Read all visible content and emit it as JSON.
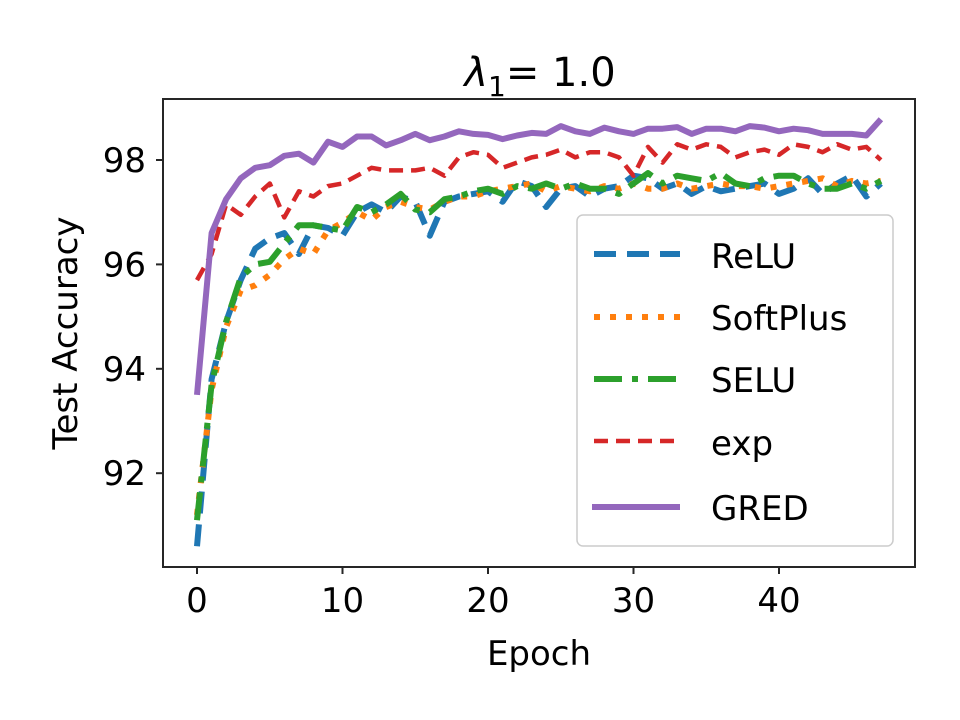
{
  "chart_data": {
    "type": "line",
    "title": "λ1= 1.0",
    "title_main": "λ",
    "title_sub": "1",
    "title_rest": "= 1.0",
    "xlabel": "Epoch",
    "ylabel": "Test Accuracy",
    "xlim": [
      -2.35,
      49.35
    ],
    "ylim": [
      90.2,
      99.17
    ],
    "xticks": [
      0,
      10,
      20,
      30,
      40
    ],
    "xtick_labels": [
      "0",
      "10",
      "20",
      "30",
      "40"
    ],
    "yticks": [
      92,
      94,
      96,
      98
    ],
    "ytick_labels": [
      "92",
      "94",
      "96",
      "98"
    ],
    "grid": false,
    "legend_position": "lower right",
    "x": [
      0,
      1,
      2,
      3,
      4,
      5,
      6,
      7,
      8,
      9,
      10,
      11,
      12,
      13,
      14,
      15,
      16,
      17,
      18,
      19,
      20,
      21,
      22,
      23,
      24,
      25,
      26,
      27,
      28,
      29,
      30,
      31,
      32,
      33,
      34,
      35,
      36,
      37,
      38,
      39,
      40,
      41,
      42,
      43,
      44,
      45,
      46,
      47
    ],
    "series": [
      {
        "name": "ReLU",
        "color": "#1f77b4",
        "dash": "dashed",
        "values": [
          90.6,
          93.8,
          94.9,
          95.7,
          96.3,
          96.5,
          96.6,
          96.2,
          96.75,
          96.7,
          96.55,
          97.0,
          97.15,
          97.0,
          97.3,
          97.2,
          96.55,
          97.2,
          97.3,
          97.35,
          97.4,
          97.2,
          97.6,
          97.5,
          97.1,
          97.45,
          97.5,
          97.3,
          97.45,
          97.5,
          97.7,
          97.65,
          97.45,
          97.55,
          97.35,
          97.5,
          97.4,
          97.45,
          97.5,
          97.55,
          97.35,
          97.45,
          97.65,
          97.35,
          97.55,
          97.7,
          97.3,
          97.55
        ]
      },
      {
        "name": "SoftPlus",
        "color": "#ff7f0e",
        "dash": "dotted",
        "values": [
          91.2,
          93.6,
          94.8,
          95.5,
          95.6,
          95.8,
          96.1,
          96.3,
          96.2,
          96.65,
          96.8,
          97.0,
          96.85,
          97.1,
          97.2,
          97.1,
          97.05,
          97.2,
          97.3,
          97.3,
          97.4,
          97.45,
          97.5,
          97.55,
          97.4,
          97.5,
          97.45,
          97.4,
          97.5,
          97.45,
          97.55,
          97.45,
          97.45,
          97.55,
          97.45,
          97.5,
          97.55,
          97.5,
          97.5,
          97.45,
          97.5,
          97.55,
          97.6,
          97.65,
          97.5,
          97.6,
          97.55,
          97.6
        ]
      },
      {
        "name": "SELU",
        "color": "#2ca02c",
        "dash": "dashdot",
        "values": [
          91.1,
          93.7,
          94.9,
          95.75,
          96.0,
          96.05,
          96.4,
          96.75,
          96.75,
          96.7,
          96.65,
          97.1,
          97.0,
          97.15,
          97.35,
          97.05,
          97.0,
          97.25,
          97.3,
          97.4,
          97.45,
          97.35,
          97.5,
          97.45,
          97.55,
          97.45,
          97.55,
          97.45,
          97.45,
          97.35,
          97.55,
          97.75,
          97.55,
          97.7,
          97.65,
          97.6,
          97.75,
          97.55,
          97.5,
          97.65,
          97.7,
          97.7,
          97.55,
          97.45,
          97.45,
          97.55,
          97.45,
          97.6
        ]
      },
      {
        "name": "exp",
        "color": "#d62728",
        "dash": "dashed-short",
        "values": [
          95.7,
          96.2,
          97.15,
          96.95,
          97.3,
          97.55,
          96.9,
          97.4,
          97.3,
          97.5,
          97.55,
          97.7,
          97.85,
          97.8,
          97.8,
          97.8,
          97.85,
          97.7,
          98.05,
          98.15,
          98.1,
          97.85,
          97.95,
          98.05,
          98.1,
          98.2,
          98.05,
          98.15,
          98.15,
          98.05,
          97.7,
          98.25,
          97.95,
          98.3,
          98.2,
          98.3,
          98.25,
          98.05,
          98.15,
          98.2,
          98.1,
          98.3,
          98.25,
          98.15,
          98.3,
          98.2,
          98.25,
          98.0
        ]
      },
      {
        "name": "GRED",
        "color": "#9467bd",
        "dash": "solid",
        "values": [
          93.5,
          96.6,
          97.25,
          97.65,
          97.85,
          97.9,
          98.08,
          98.12,
          97.95,
          98.35,
          98.25,
          98.45,
          98.45,
          98.28,
          98.38,
          98.5,
          98.38,
          98.45,
          98.55,
          98.5,
          98.48,
          98.4,
          98.47,
          98.52,
          98.5,
          98.65,
          98.55,
          98.5,
          98.62,
          98.55,
          98.5,
          98.6,
          98.6,
          98.63,
          98.5,
          98.6,
          98.6,
          98.55,
          98.65,
          98.62,
          98.55,
          98.6,
          98.57,
          98.5,
          98.5,
          98.5,
          98.47,
          98.78
        ]
      }
    ]
  },
  "legend": {
    "items": [
      {
        "label": "ReLU"
      },
      {
        "label": "SoftPlus"
      },
      {
        "label": "SELU"
      },
      {
        "label": "exp"
      },
      {
        "label": "GRED"
      }
    ]
  }
}
